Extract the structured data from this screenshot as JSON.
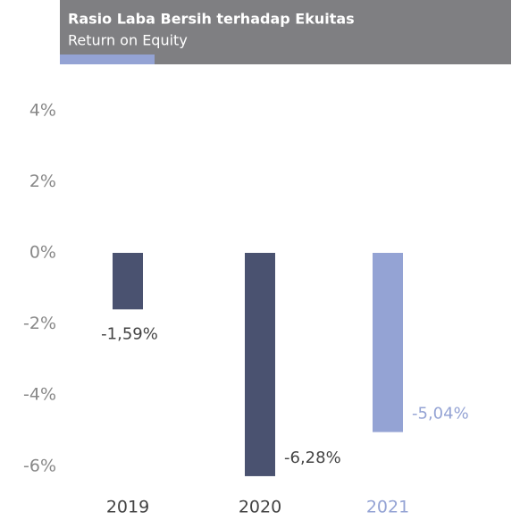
{
  "chart_data": {
    "type": "bar",
    "title": "Rasio Laba Bersih terhadap Ekuitas",
    "subtitle": "Return on Equity",
    "categories": [
      "2019",
      "2020",
      "2021"
    ],
    "values": [
      -1.59,
      -6.28,
      -5.04
    ],
    "value_labels": [
      "-1,59%",
      "-6,28%",
      "-5,04%"
    ],
    "colors": [
      "#4a5270",
      "#4a5270",
      "#94a3d4"
    ],
    "ylim": [
      -6.6,
      4.3
    ],
    "yticks": [
      {
        "value": 4,
        "label": "4%"
      },
      {
        "value": 2,
        "label": "2%"
      },
      {
        "value": 0,
        "label": "0%"
      },
      {
        "value": -2,
        "label": "-2%"
      },
      {
        "value": -4,
        "label": "-4%"
      },
      {
        "value": -6,
        "label": "-6%"
      }
    ],
    "grid": false
  }
}
